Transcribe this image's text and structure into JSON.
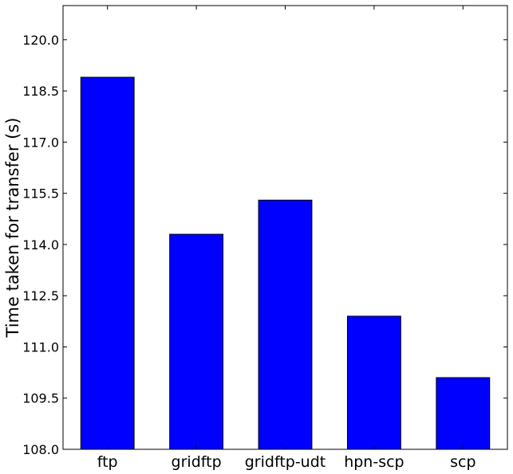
{
  "chart_data": {
    "type": "bar",
    "categories": [
      "ftp",
      "gridftp",
      "gridftp-udt",
      "hpn-scp",
      "scp"
    ],
    "values": [
      118.9,
      114.3,
      115.3,
      111.9,
      110.1
    ],
    "title": "",
    "xlabel": "",
    "ylabel": "Time taken for transfer (s)",
    "ylim": [
      108.0,
      121.0
    ],
    "yticks": [
      108.0,
      109.5,
      111.0,
      112.5,
      114.0,
      115.5,
      117.0,
      118.5,
      120.0
    ],
    "ytick_labels": [
      "108.0",
      "109.5",
      "111.0",
      "112.5",
      "114.0",
      "115.5",
      "117.0",
      "118.5",
      "120.0"
    ],
    "grid": false,
    "legend": "none",
    "bar_color": "#0000ff",
    "bar_edge_color": "#000000"
  }
}
